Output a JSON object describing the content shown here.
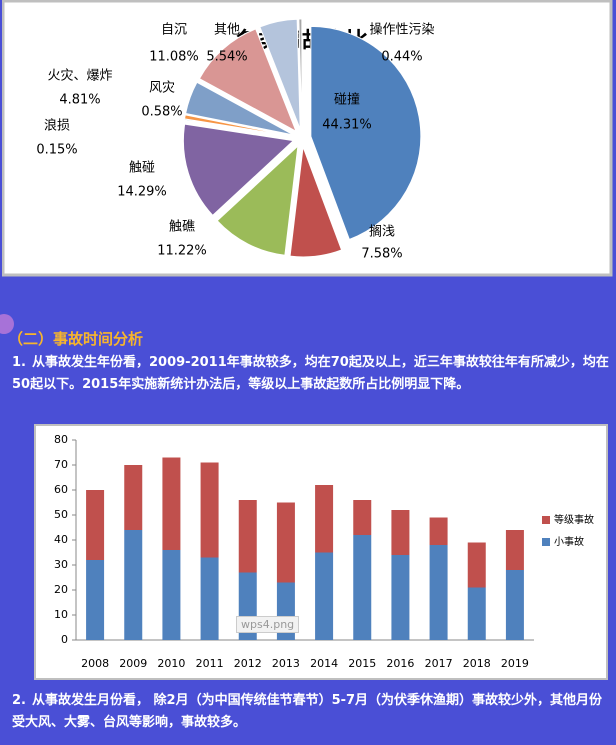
{
  "chart_data": [
    {
      "type": "pie",
      "title": "各类事故占比",
      "categories": [
        "碰撞",
        "搁浅",
        "触礁",
        "触碰",
        "浪损",
        "风灾",
        "火灾、爆炸",
        "自沉",
        "其他",
        "操作性污染"
      ],
      "values": [
        44.31,
        7.58,
        11.22,
        14.29,
        0.15,
        0.58,
        4.81,
        11.08,
        5.54,
        0.44
      ],
      "value_labels": [
        "44.31%",
        "7.58%",
        "11.22%",
        "14.29%",
        "0.15%",
        "0.58%",
        "4.81%",
        "11.08%",
        "5.54%",
        "0.44%"
      ],
      "colors": [
        "#4f81bd",
        "#c0504d",
        "#9bbb59",
        "#8064a2",
        "#4bacc6",
        "#f79646",
        "#7f9fc8",
        "#d99694",
        "#b4c4dc",
        "#a6a6a6"
      ]
    },
    {
      "type": "stacked_bar",
      "categories": [
        "2008",
        "2009",
        "2010",
        "2011",
        "2012",
        "2013",
        "2014",
        "2015",
        "2016",
        "2017",
        "2018",
        "2019"
      ],
      "series": [
        {
          "name": "小事故",
          "color": "#4f81bd",
          "values": [
            32,
            44,
            36,
            33,
            27,
            23,
            35,
            42,
            34,
            38,
            21,
            28
          ]
        },
        {
          "name": "等级事故",
          "color": "#c0504d",
          "values": [
            28,
            26,
            37,
            38,
            29,
            32,
            27,
            14,
            18,
            11,
            18,
            16
          ]
        }
      ],
      "ylim": [
        0,
        80
      ],
      "yticks": [
        0,
        10,
        20,
        30,
        40,
        50,
        60,
        70,
        80
      ],
      "grid": false,
      "legend": "right"
    }
  ],
  "section": {
    "heading": "（二）事故时间分析"
  },
  "paragraphs": [
    {
      "number": "1.",
      "text": "从事故发生年份看，2009-2011年事故较多，均在70起及以上，近三年事故较往年有所减少，均在50起以下。2015年实施新统计办法后，等级以上事故起数所占比例明显下降。"
    },
    {
      "number": "2.",
      "text": "从事故发生月份看， 除2月（为中国传统佳节春节）5-7月（为伏季休渔期）事故较少外，其他月份受大风、大雾、台风等影响，事故较多。"
    }
  ],
  "image_caption": "wps4.png"
}
